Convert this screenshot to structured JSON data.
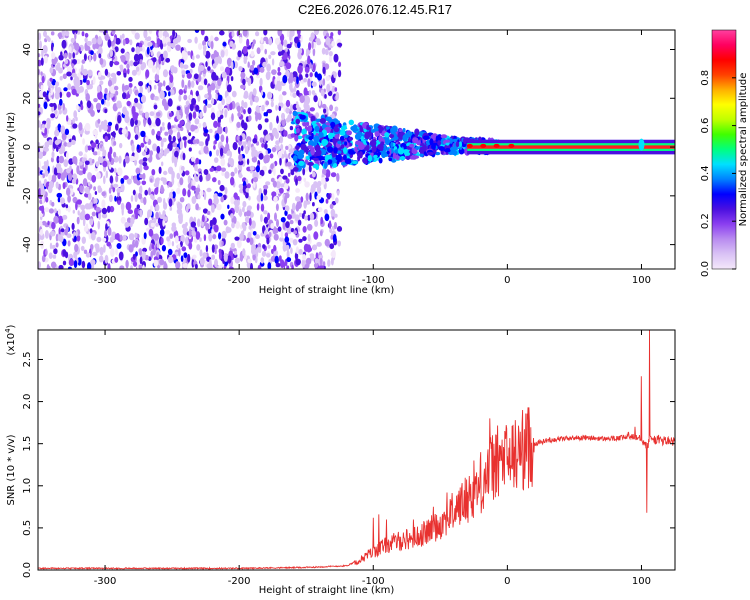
{
  "title": "C2E6.2026.076.12.45.R17",
  "colors": {
    "spectral_mark": "#7b1fe8",
    "snr_line": "#e8312f",
    "frame": "#000000"
  },
  "chart_data": [
    {
      "type": "heatmap",
      "xlabel": "Height of straight line (km)",
      "ylabel": "Frequency (Hz)",
      "xlim": [
        -350,
        125
      ],
      "ylim": [
        -50,
        48
      ],
      "xticks": [
        -300,
        -200,
        -100,
        0,
        100
      ],
      "xtick_labels": [
        "-300",
        "-200",
        "-100",
        "0",
        "100"
      ],
      "yticks": [
        -40,
        -20,
        0,
        20,
        40
      ],
      "ytick_labels": [
        "-40",
        "-20",
        "0",
        "20",
        "40"
      ],
      "colorbar": {
        "label": "Normalized spectral amplitude",
        "range": [
          0,
          1
        ],
        "ticks": [
          0.0,
          0.2,
          0.4,
          0.6,
          0.8
        ],
        "tick_labels": [
          "0.0",
          "0.2",
          "0.4",
          "0.6",
          "0.8"
        ],
        "stops": [
          "#f4e8fa",
          "#d9c2f5",
          "#b98cf0",
          "#8b3ff0",
          "#4b10e0",
          "#0000ff",
          "#0080ff",
          "#00e0ff",
          "#00ff80",
          "#40ff00",
          "#c0ff00",
          "#ffff00",
          "#ffb000",
          "#ff4000",
          "#ff0000",
          "#ff0060",
          "#ff40a0"
        ]
      },
      "regions": [
        {
          "name": "noise",
          "x_range": [
            -350,
            -135
          ],
          "freq_range": [
            -50,
            48
          ],
          "amplitude": 0.15
        },
        {
          "name": "onset",
          "x_range": [
            -135,
            -30
          ],
          "freq_range": [
            -8,
            10
          ],
          "amplitude": 0.4
        },
        {
          "name": "carrier",
          "x_range": [
            -30,
            125
          ],
          "freq_range": [
            -1,
            1
          ],
          "amplitude": 0.9
        }
      ]
    },
    {
      "type": "line",
      "xlabel": "Height of straight line (km)",
      "ylabel": "SNR (10 * v/v)",
      "multiplier_label": "(x10",
      "multiplier_exp": "4",
      "multiplier_close": ")",
      "xlim": [
        -350,
        125
      ],
      "ylim": [
        0,
        2.85
      ],
      "xticks": [
        -300,
        -200,
        -100,
        0,
        100
      ],
      "xtick_labels": [
        "-300",
        "-200",
        "-100",
        "0",
        "100"
      ],
      "yticks": [
        0,
        0.5,
        1.0,
        1.5,
        2.0,
        2.5
      ],
      "ytick_labels": [
        "0.0",
        "0.5",
        "1.0",
        "1.5",
        "2.0",
        "2.5"
      ],
      "series": [
        {
          "x": [
            -350,
            -300,
            -250,
            -200,
            -150,
            -120,
            -110,
            -100,
            -90,
            -80,
            -70,
            -60,
            -50,
            -40,
            -30,
            -20,
            -15,
            -10,
            -5,
            0,
            5,
            10,
            20,
            30,
            40,
            50,
            60,
            70,
            80,
            90,
            95,
            100,
            104,
            106,
            110,
            125
          ],
          "y": [
            0.02,
            0.02,
            0.02,
            0.02,
            0.03,
            0.05,
            0.12,
            0.22,
            0.3,
            0.35,
            0.38,
            0.45,
            0.55,
            0.7,
            0.85,
            1.0,
            1.15,
            1.25,
            1.3,
            1.32,
            1.35,
            1.42,
            1.5,
            1.54,
            1.56,
            1.57,
            1.57,
            1.56,
            1.56,
            1.58,
            1.6,
            1.58,
            1.45,
            1.55,
            1.55,
            1.52
          ],
          "peaks": [
            {
              "x": -100,
              "y": 0.62
            },
            {
              "x": -96,
              "y": 0.66
            },
            {
              "x": -90,
              "y": 0.6
            },
            {
              "x": -70,
              "y": 0.6
            },
            {
              "x": -55,
              "y": 0.75
            },
            {
              "x": -45,
              "y": 0.92
            },
            {
              "x": -35,
              "y": 0.98
            },
            {
              "x": -25,
              "y": 1.3
            },
            {
              "x": -20,
              "y": 1.4
            },
            {
              "x": -13,
              "y": 1.8
            },
            {
              "x": -10,
              "y": 1.5
            },
            {
              "x": 0,
              "y": 1.35
            },
            {
              "x": 95,
              "y": 1.7
            },
            {
              "x": 100,
              "y": 2.3
            },
            {
              "x": 104,
              "y": 0.68
            },
            {
              "x": 106,
              "y": 2.85
            }
          ]
        }
      ]
    }
  ]
}
